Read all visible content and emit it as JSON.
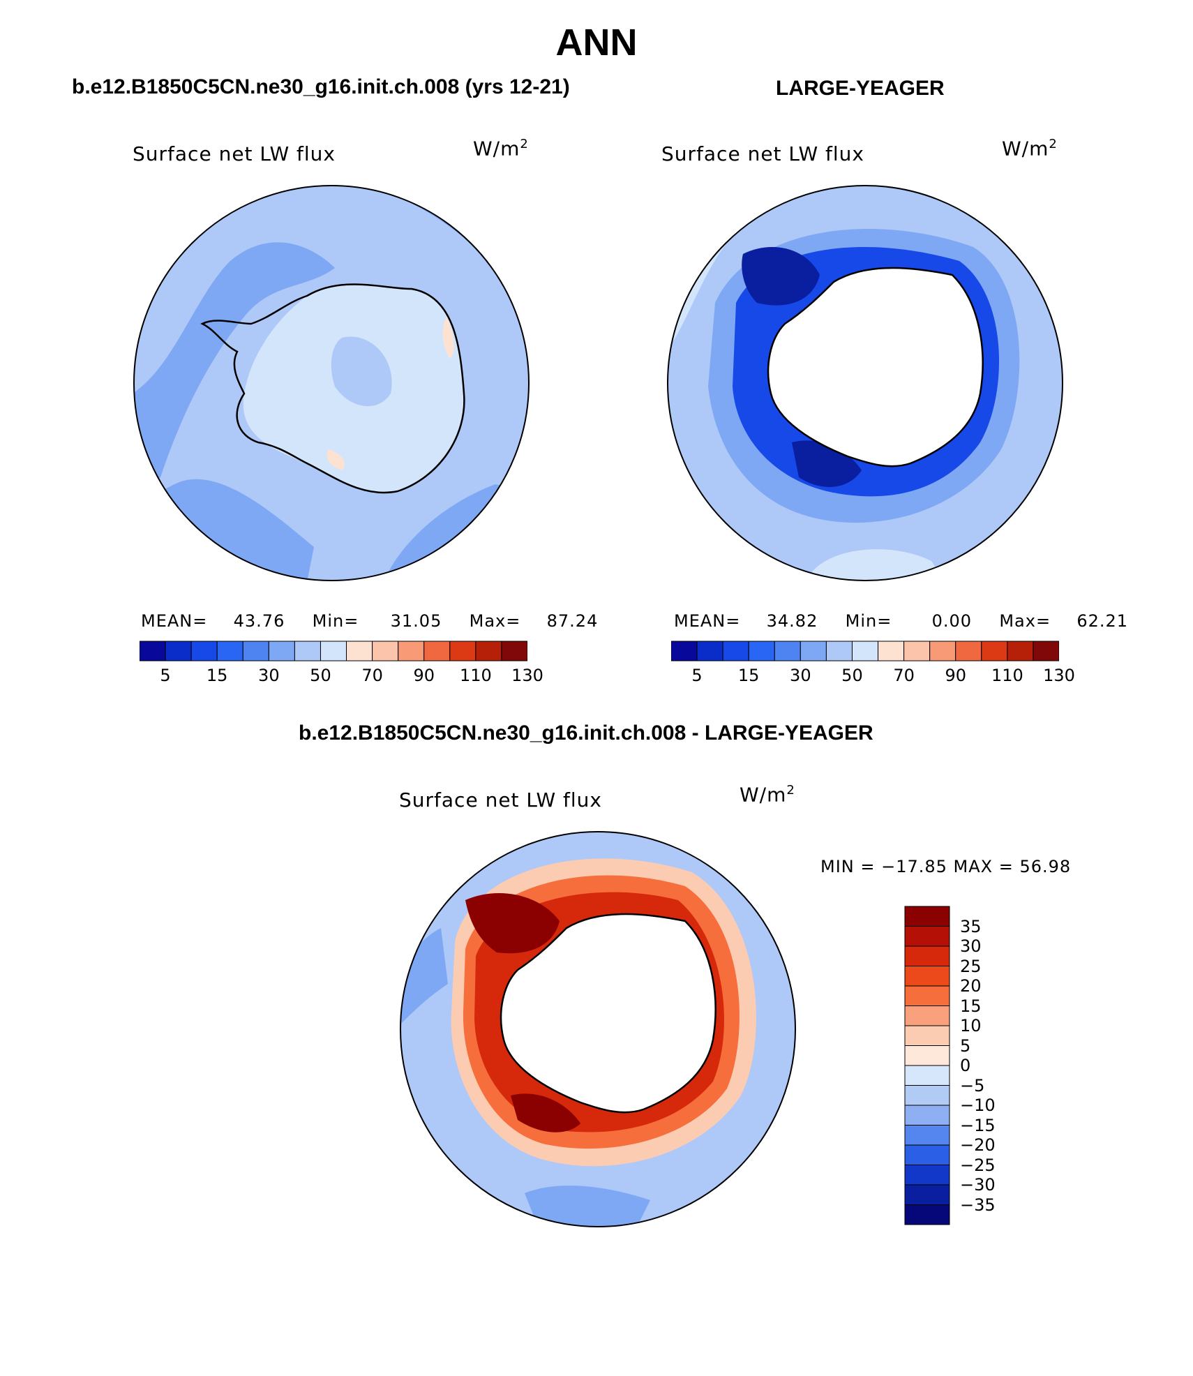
{
  "main_title": "ANN",
  "panels": [
    {
      "title": "b.e12.B1850C5CN.ne30_g16.init.ch.008 (yrs 12-21)",
      "variable": "Surface net LW flux",
      "units_base": "W/m",
      "units_exp": "2",
      "stats": {
        "mean_label": "MEAN=",
        "mean": "43.76",
        "min_label": "Min=",
        "min": "31.05",
        "max_label": "Max=",
        "max": "87.24"
      }
    },
    {
      "title": "LARGE-YEAGER",
      "variable": "Surface net LW flux",
      "units_base": "W/m",
      "units_exp": "2",
      "stats": {
        "mean_label": "MEAN=",
        "mean": "34.82",
        "min_label": "Min=",
        "min": "0.00",
        "max_label": "Max=",
        "max": "62.21"
      }
    }
  ],
  "horizontal_colorbar": {
    "colors": [
      "#08089a",
      "#0a2cc8",
      "#1748e8",
      "#2a66f4",
      "#4d84f2",
      "#7fa8f4",
      "#aec8f7",
      "#d3e5fb",
      "#fde2d2",
      "#fdc4ac",
      "#f99a76",
      "#f06840",
      "#dc3a14",
      "#b62008",
      "#800808"
    ],
    "tick_labels": [
      "5",
      "15",
      "30",
      "50",
      "70",
      "90",
      "110",
      "130"
    ]
  },
  "diff_panel": {
    "title": "b.e12.B1850C5CN.ne30_g16.init.ch.008 - LARGE-YEAGER",
    "variable": "Surface net LW flux",
    "units_base": "W/m",
    "units_exp": "2",
    "minmax_text": "MIN = −17.85 MAX =  56.98"
  },
  "vertical_colorbar": {
    "colors": [
      "#8b0000",
      "#b41006",
      "#d6280a",
      "#ed4a1c",
      "#f66e3c",
      "#f9a07c",
      "#fcccb2",
      "#fee8da",
      "#d6e6fb",
      "#b2cbf5",
      "#8eb0f2",
      "#5586ef",
      "#2b5fe5",
      "#1138c8",
      "#0a1ea0",
      "#06087a"
    ],
    "tick_labels": [
      "35",
      "30",
      "25",
      "20",
      "15",
      "10",
      "5",
      "0",
      "−5",
      "−10",
      "−15",
      "−20",
      "−25",
      "−30",
      "−35"
    ]
  },
  "map_colors": {
    "ocean_light": "#aec8f7",
    "ocean_mid": "#7fa8f4",
    "ice_pale": "#d3e5fb",
    "deep_blue": "#1748e8",
    "navy": "#0a1ea0",
    "diff_dark": "#8b0000",
    "diff_red": "#d6280a",
    "diff_orange": "#f66e3c",
    "diff_peach": "#fcccb2",
    "peach": "#fde2d2",
    "coast": "#000000",
    "land_mask": "#ffffff"
  }
}
